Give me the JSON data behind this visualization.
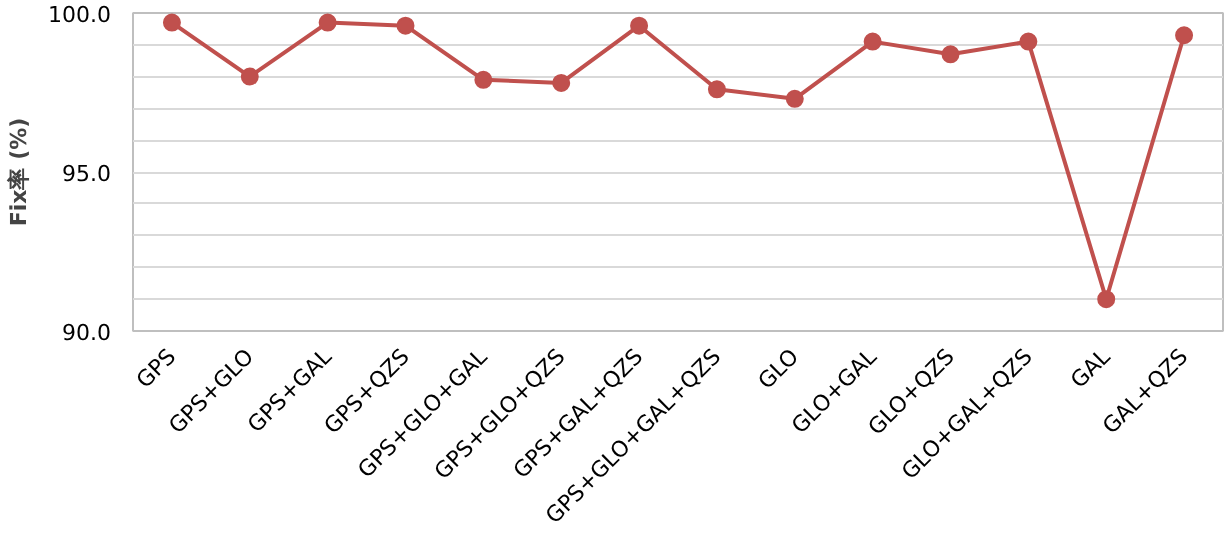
{
  "chart_data": {
    "type": "line",
    "ylabel": "Fix率 (%)",
    "categories": [
      "GPS",
      "GPS+GLO",
      "GPS+GAL",
      "GPS+QZS",
      "GPS+GLO+GAL",
      "GPS+GLO+QZS",
      "GPS+GAL+QZS",
      "GPS+GLO+GAL+QZS",
      "GLO",
      "GLO+GAL",
      "GLO+QZS",
      "GLO+GAL+QZS",
      "GAL",
      "GAL+QZS"
    ],
    "series": [
      {
        "color": "#c0504d",
        "values": [
          99.7,
          98.0,
          99.7,
          99.6,
          97.9,
          97.8,
          99.6,
          97.6,
          97.3,
          99.1,
          98.7,
          99.1,
          91.0,
          99.3
        ]
      }
    ],
    "ylim": [
      90,
      100
    ],
    "yticks": [
      {
        "value": 90,
        "label": "90.0"
      },
      {
        "value": 91,
        "label": null
      },
      {
        "value": 92,
        "label": null
      },
      {
        "value": 93,
        "label": null
      },
      {
        "value": 94,
        "label": null
      },
      {
        "value": 95,
        "label": "95.0"
      },
      {
        "value": 96,
        "label": null
      },
      {
        "value": 97,
        "label": null
      },
      {
        "value": 98,
        "label": null
      },
      {
        "value": 99,
        "label": null
      },
      {
        "value": 100,
        "label": "100.0"
      }
    ],
    "grid": "y",
    "marker": "circle",
    "line_style": "solid"
  }
}
